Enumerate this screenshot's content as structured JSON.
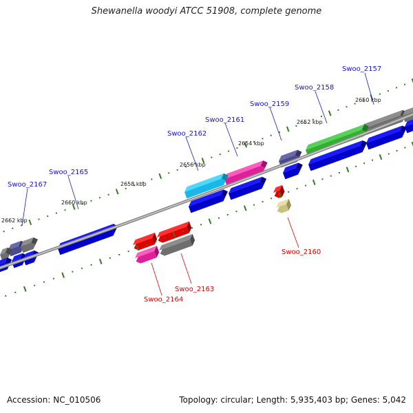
{
  "title": "Shewanella woodyi ATCC 51908, complete genome",
  "footer": {
    "accession": "Accession: NC_010506",
    "summary": "Topology: circular; Length: 5,935,403 bp; Genes: 5,042"
  },
  "colors": {
    "background": "#ffffff",
    "backbone": "#8c8c8c",
    "tick": "#2e7d20",
    "forward_label": "#1515c8",
    "reverse_label": "#e00000"
  },
  "kbp_labels": [
    "2650 kbp",
    "2652 kbp",
    "2654 kbp",
    "2656 kbp",
    "2658 kbp",
    "2660 kbp",
    "2662 kbp"
  ],
  "gene_labels": {
    "forward": [
      "Swoo_2157",
      "Swoo_2158",
      "Swoo_2159",
      "Swoo_2161",
      "Swoo_2162",
      "Swoo_2165",
      "Swoo_2167"
    ],
    "reverse": [
      "Swoo_2160",
      "Swoo_2163",
      "Swoo_2164"
    ]
  },
  "gene_colors": [
    "blue",
    "grey",
    "green",
    "slate-blue",
    "magenta",
    "cyan",
    "red",
    "khaki"
  ]
}
